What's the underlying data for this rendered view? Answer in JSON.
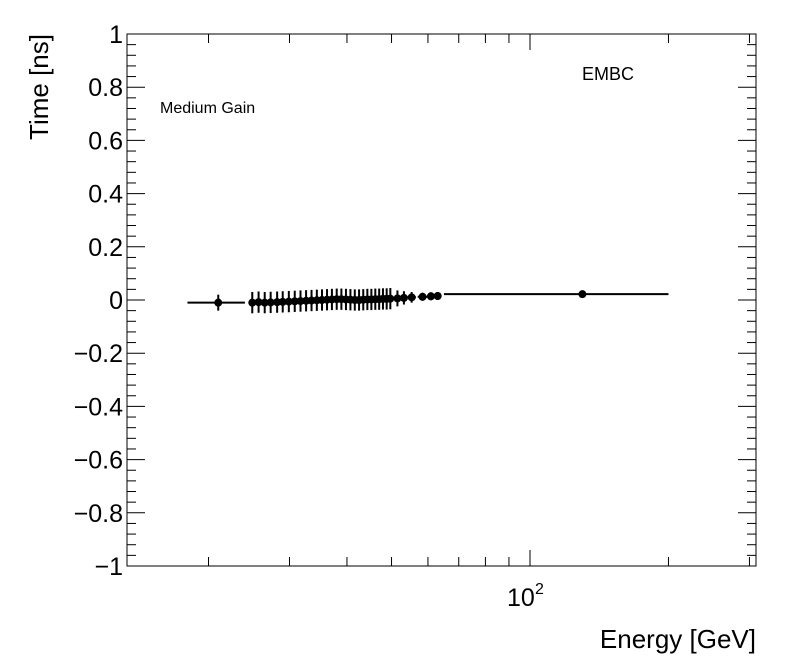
{
  "chart_data": {
    "type": "scatter",
    "xlabel": "Energy [GeV]",
    "ylabel": "Time [ns]",
    "xscale": "log",
    "xlim": [
      13.3,
      310
    ],
    "ylim": [
      -1,
      1
    ],
    "y_ticks": [
      -1,
      -0.8,
      -0.6,
      -0.4,
      -0.2,
      0,
      0.2,
      0.4,
      0.6,
      0.8,
      1
    ],
    "y_tick_labels": [
      "−1",
      "−0.8",
      "−0.6",
      "−0.4",
      "−0.2",
      "0",
      "0.2",
      "0.4",
      "0.6",
      "0.8",
      "1"
    ],
    "x_tick_label": {
      "base": "10",
      "exp": "2",
      "value": 100
    },
    "grid": false,
    "annotations": {
      "top_right": "EMBC",
      "top_left": "Medium Gain"
    },
    "series": [
      {
        "points": [
          {
            "x": 21.0,
            "y": -0.01,
            "xlo": 18.0,
            "xhi": 24.0,
            "yerr": 0.03
          },
          {
            "x": 24.9,
            "y": -0.01,
            "xlo": 24.6,
            "xhi": 25.2,
            "yerr": 0.04
          },
          {
            "x": 25.7,
            "y": -0.008,
            "xlo": 25.3,
            "xhi": 26.1,
            "yerr": 0.04
          },
          {
            "x": 26.5,
            "y": -0.01,
            "xlo": 26.1,
            "xhi": 26.9,
            "yerr": 0.04
          },
          {
            "x": 27.3,
            "y": -0.009,
            "xlo": 26.9,
            "xhi": 27.7,
            "yerr": 0.04
          },
          {
            "x": 28.2,
            "y": -0.008,
            "xlo": 27.8,
            "xhi": 28.6,
            "yerr": 0.04
          },
          {
            "x": 29.0,
            "y": -0.007,
            "xlo": 28.6,
            "xhi": 29.4,
            "yerr": 0.04
          },
          {
            "x": 29.9,
            "y": -0.006,
            "xlo": 29.5,
            "xhi": 30.3,
            "yerr": 0.04
          },
          {
            "x": 30.8,
            "y": -0.005,
            "xlo": 30.4,
            "xhi": 31.2,
            "yerr": 0.04
          },
          {
            "x": 31.7,
            "y": -0.004,
            "xlo": 31.3,
            "xhi": 32.1,
            "yerr": 0.04
          },
          {
            "x": 32.6,
            "y": -0.003,
            "xlo": 32.2,
            "xhi": 33.0,
            "yerr": 0.04
          },
          {
            "x": 33.5,
            "y": -0.002,
            "xlo": 33.1,
            "xhi": 33.9,
            "yerr": 0.04
          },
          {
            "x": 34.4,
            "y": -0.001,
            "xlo": 34.0,
            "xhi": 34.8,
            "yerr": 0.04
          },
          {
            "x": 35.3,
            "y": 0.0,
            "xlo": 34.9,
            "xhi": 35.7,
            "yerr": 0.04
          },
          {
            "x": 36.2,
            "y": 0.001,
            "xlo": 35.8,
            "xhi": 36.6,
            "yerr": 0.04
          },
          {
            "x": 37.1,
            "y": 0.002,
            "xlo": 36.7,
            "xhi": 37.5,
            "yerr": 0.04
          },
          {
            "x": 38.0,
            "y": 0.003,
            "xlo": 37.6,
            "xhi": 38.4,
            "yerr": 0.04
          },
          {
            "x": 38.9,
            "y": 0.003,
            "xlo": 38.5,
            "xhi": 39.3,
            "yerr": 0.04
          },
          {
            "x": 39.8,
            "y": 0.002,
            "xlo": 39.4,
            "xhi": 40.2,
            "yerr": 0.04
          },
          {
            "x": 40.7,
            "y": 0.001,
            "xlo": 40.3,
            "xhi": 41.1,
            "yerr": 0.04
          },
          {
            "x": 41.6,
            "y": 0.0,
            "xlo": 41.2,
            "xhi": 42.0,
            "yerr": 0.04
          },
          {
            "x": 42.5,
            "y": 0.0,
            "xlo": 42.1,
            "xhi": 42.9,
            "yerr": 0.04
          },
          {
            "x": 43.4,
            "y": 0.001,
            "xlo": 43.0,
            "xhi": 43.8,
            "yerr": 0.04
          },
          {
            "x": 44.3,
            "y": 0.002,
            "xlo": 43.9,
            "xhi": 44.7,
            "yerr": 0.04
          },
          {
            "x": 45.2,
            "y": 0.002,
            "xlo": 44.8,
            "xhi": 45.6,
            "yerr": 0.04
          },
          {
            "x": 46.1,
            "y": 0.003,
            "xlo": 45.7,
            "xhi": 46.5,
            "yerr": 0.04
          },
          {
            "x": 47.0,
            "y": 0.003,
            "xlo": 46.6,
            "xhi": 47.4,
            "yerr": 0.04
          },
          {
            "x": 47.9,
            "y": 0.004,
            "xlo": 47.5,
            "xhi": 48.3,
            "yerr": 0.04
          },
          {
            "x": 48.8,
            "y": 0.004,
            "xlo": 48.4,
            "xhi": 49.2,
            "yerr": 0.04
          },
          {
            "x": 49.7,
            "y": 0.005,
            "xlo": 49.3,
            "xhi": 50.1,
            "yerr": 0.04
          },
          {
            "x": 51.5,
            "y": 0.006,
            "xlo": 50.6,
            "xhi": 52.4,
            "yerr": 0.03
          },
          {
            "x": 53.2,
            "y": 0.008,
            "xlo": 52.5,
            "xhi": 54.0,
            "yerr": 0.025
          },
          {
            "x": 55.3,
            "y": 0.01,
            "xlo": 54.2,
            "xhi": 56.5,
            "yerr": 0.02
          },
          {
            "x": 58.4,
            "y": 0.012,
            "xlo": 57.0,
            "xhi": 60.0,
            "yerr": 0.015
          },
          {
            "x": 60.9,
            "y": 0.014,
            "xlo": 60.0,
            "xhi": 61.8,
            "yerr": 0.015
          },
          {
            "x": 63.0,
            "y": 0.015,
            "xlo": 62.0,
            "xhi": 64.0,
            "yerr": 0.015
          },
          {
            "x": 130.0,
            "y": 0.022,
            "xlo": 65.0,
            "xhi": 200.0,
            "yerr": 0.01
          }
        ]
      }
    ]
  }
}
